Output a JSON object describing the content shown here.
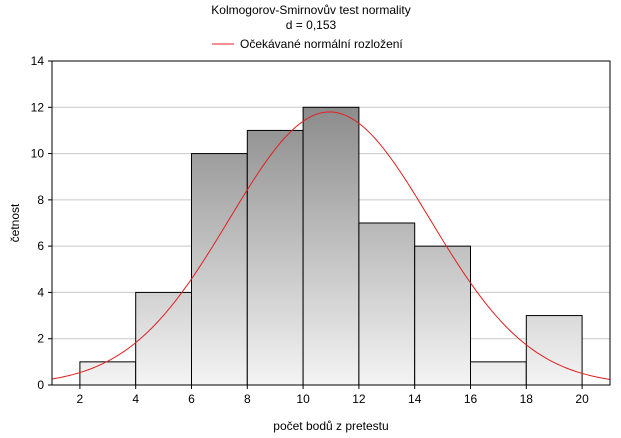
{
  "chart_data": {
    "type": "bar",
    "title": "Kolmogorov-Smirnovův test normality",
    "subtitle": "d = 0,153",
    "xlabel": "počet bodů z pretestu",
    "ylabel": "četnost",
    "xlim": [
      1,
      21
    ],
    "ylim": [
      0,
      14
    ],
    "x_ticks": [
      2,
      4,
      6,
      8,
      10,
      12,
      14,
      16,
      18,
      20
    ],
    "y_ticks": [
      0,
      2,
      4,
      6,
      8,
      10,
      12,
      14
    ],
    "grid": "horizontal",
    "legend_position": "top-center",
    "bins": [
      {
        "from": 2,
        "to": 4,
        "count": 1
      },
      {
        "from": 4,
        "to": 6,
        "count": 4
      },
      {
        "from": 6,
        "to": 8,
        "count": 10
      },
      {
        "from": 8,
        "to": 10,
        "count": 11
      },
      {
        "from": 10,
        "to": 12,
        "count": 12
      },
      {
        "from": 12,
        "to": 14,
        "count": 7
      },
      {
        "from": 14,
        "to": 16,
        "count": 6
      },
      {
        "from": 16,
        "to": 18,
        "count": 1
      },
      {
        "from": 18,
        "to": 20,
        "count": 3
      }
    ],
    "series": [
      {
        "name": "Očekávané normální rozložení",
        "type": "line",
        "color": "#e02020",
        "mean": 10.95,
        "peak": 11.8,
        "sd": 3.6
      }
    ],
    "bar_gradient_top": "#8c8c8c",
    "bar_gradient_bottom": "#f4f4f4"
  }
}
